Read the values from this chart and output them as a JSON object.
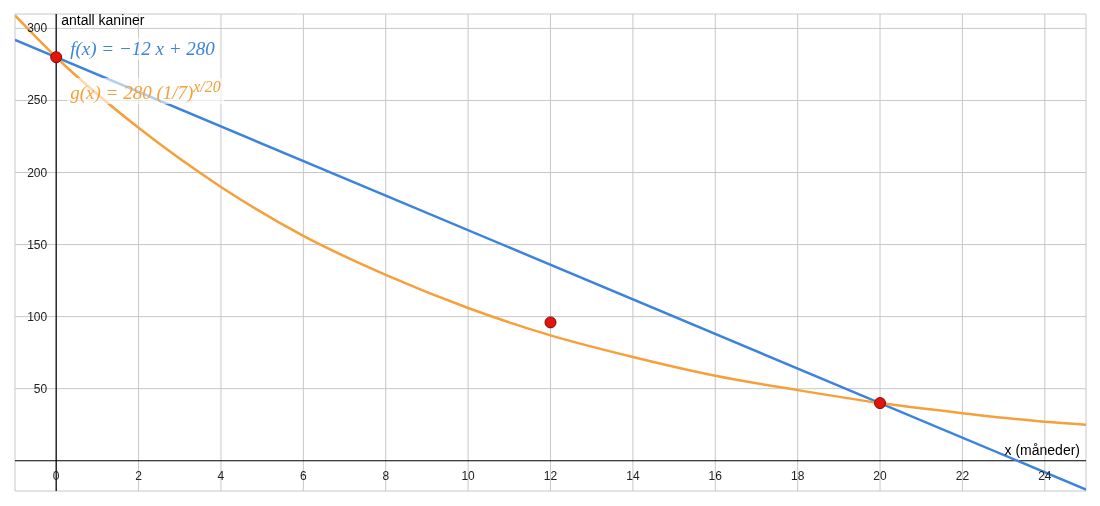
{
  "chart_data": {
    "type": "line",
    "xlabel": "x (måneder)",
    "ylabel": "antall kaniner",
    "xlim": [
      -1,
      25
    ],
    "ylim": [
      -21,
      310
    ],
    "xticks": [
      0,
      2,
      4,
      6,
      8,
      10,
      12,
      14,
      16,
      18,
      20,
      22,
      24
    ],
    "yticks": [
      50,
      100,
      150,
      200,
      250,
      300
    ],
    "grid": true,
    "legend": false,
    "series": [
      {
        "name": "f(x) = −12 x + 280",
        "color": "#3d83dc",
        "x": [
          -1,
          25
        ],
        "values": [
          292,
          -20
        ]
      },
      {
        "name": "g(x) = 280 (1/7)$^{x/20}$",
        "color": "#f5a03a",
        "x": [
          -1,
          0,
          2,
          4,
          6,
          8,
          10,
          12,
          14,
          16,
          18,
          20,
          22,
          24,
          25
        ],
        "values": [
          309,
          280,
          231,
          190,
          156,
          129,
          106,
          87,
          72,
          59,
          49,
          40,
          33,
          27,
          25
        ]
      },
      {
        "type": "scatter",
        "color": "#e4140c",
        "x": [
          0,
          12,
          20
        ],
        "values": [
          280,
          96,
          40
        ]
      }
    ]
  }
}
